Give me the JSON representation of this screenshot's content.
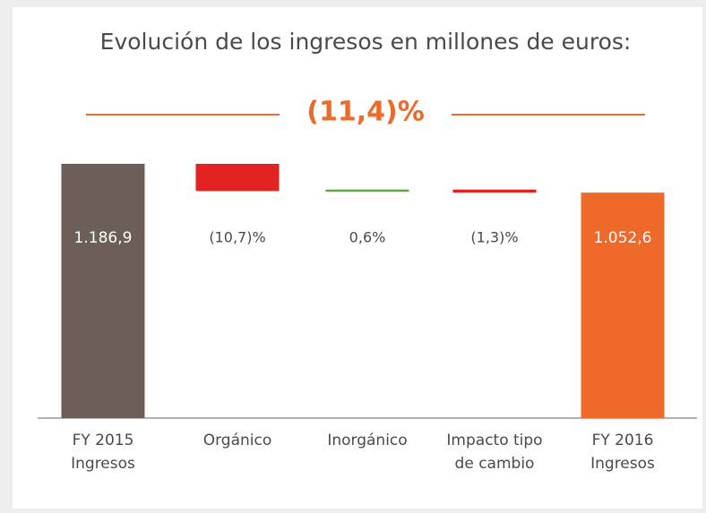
{
  "chart_data": {
    "type": "waterfall",
    "title": "Evolución de los ingresos en millones de euros:",
    "headline": "(11,4)%",
    "categories": [
      [
        "FY 2015",
        "Ingresos"
      ],
      [
        "Orgánico"
      ],
      [
        "Inorgánico"
      ],
      [
        "Impacto tipo",
        "de cambio"
      ],
      [
        "FY 2016",
        "Ingresos"
      ]
    ],
    "measure": [
      "absolute",
      "relative",
      "relative",
      "relative",
      "total"
    ],
    "values": [
      1186.9,
      -127,
      7,
      -14.3,
      1052.6
    ],
    "value_labels": [
      "1.186,9",
      null,
      null,
      null,
      "1.052,6"
    ],
    "changes": [
      null,
      -10.7,
      0.6,
      -1.3,
      null
    ],
    "change_labels": [
      null,
      "(10,7)%",
      "0,6%",
      "(1,3)%",
      null
    ],
    "colors": [
      "#6c5f59",
      "#e2231f",
      "#5aa845",
      "#e2231f",
      "#ee6a2a"
    ]
  }
}
